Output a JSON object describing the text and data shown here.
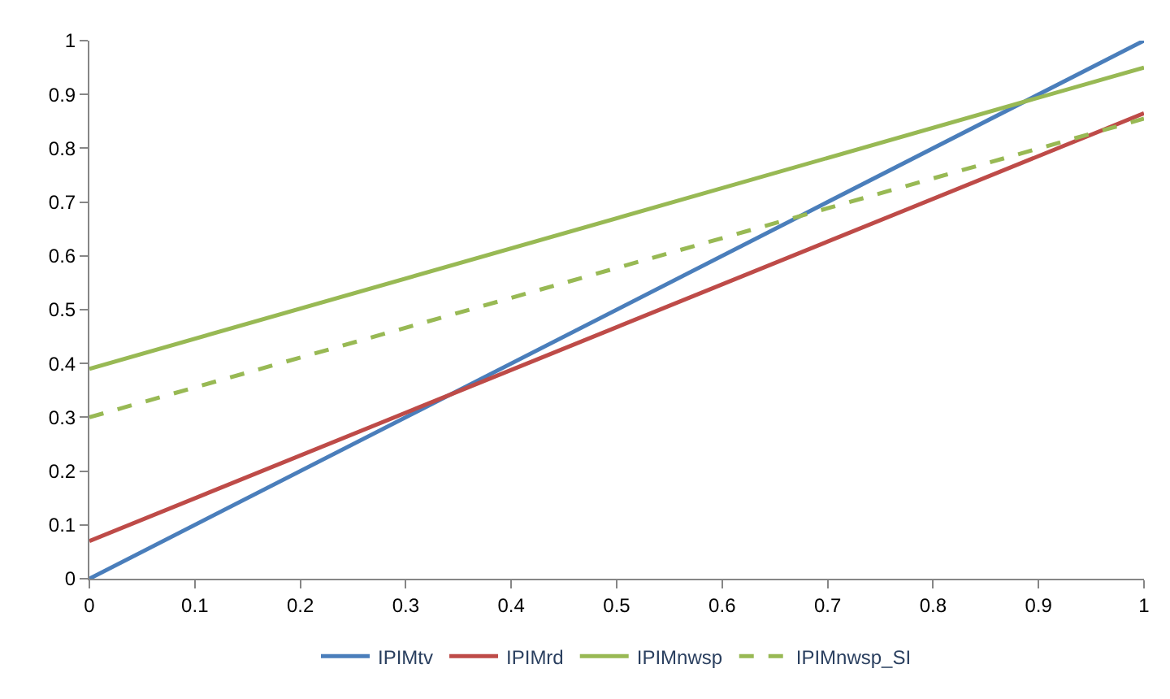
{
  "chart_data": {
    "type": "line",
    "x": [
      0,
      1
    ],
    "series": [
      {
        "name": "IPIMtv",
        "color": "#4a7ebb",
        "values": [
          0,
          1
        ]
      },
      {
        "name": "IPIMrd",
        "color": "#be4b48",
        "values": [
          0.07,
          0.865
        ]
      },
      {
        "name": "IPIMnwsp",
        "color": "#98b954",
        "values": [
          0.39,
          0.95
        ]
      },
      {
        "name": "IPIMnwsp_SI",
        "color": "#98b954",
        "values": [
          0.3,
          0.855
        ],
        "line_style": "dashed"
      }
    ],
    "xlim": [
      0,
      1
    ],
    "ylim": [
      0,
      1
    ],
    "xticks": [
      0,
      0.1,
      0.2,
      0.3,
      0.4,
      0.5,
      0.6,
      0.7,
      0.8,
      0.9,
      1
    ],
    "yticks": [
      0,
      0.1,
      0.2,
      0.3,
      0.4,
      0.5,
      0.6,
      0.7,
      0.8,
      0.9,
      1
    ],
    "legend": "bottom",
    "marker": "none",
    "line_style": "solid"
  }
}
